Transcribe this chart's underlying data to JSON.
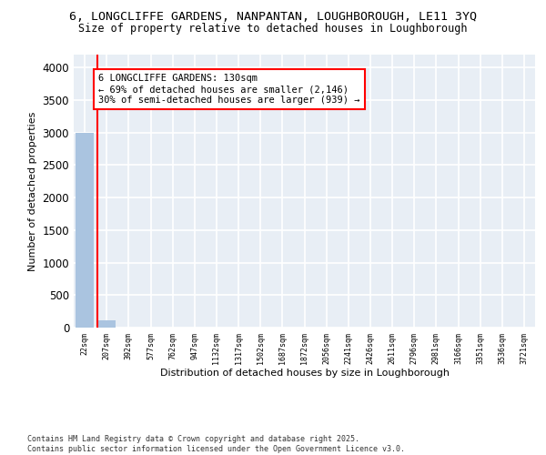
{
  "title_line1": "6, LONGCLIFFE GARDENS, NANPANTAN, LOUGHBOROUGH, LE11 3YQ",
  "title_line2": "Size of property relative to detached houses in Loughborough",
  "xlabel": "Distribution of detached houses by size in Loughborough",
  "ylabel": "Number of detached properties",
  "categories": [
    "22sqm",
    "207sqm",
    "392sqm",
    "577sqm",
    "762sqm",
    "947sqm",
    "1132sqm",
    "1317sqm",
    "1502sqm",
    "1687sqm",
    "1872sqm",
    "2056sqm",
    "2241sqm",
    "2426sqm",
    "2611sqm",
    "2796sqm",
    "2981sqm",
    "3166sqm",
    "3351sqm",
    "3536sqm",
    "3721sqm"
  ],
  "values": [
    3000,
    110,
    0,
    0,
    0,
    0,
    0,
    0,
    0,
    0,
    0,
    0,
    0,
    0,
    0,
    0,
    0,
    0,
    0,
    0,
    0
  ],
  "bar_color": "#aac4e0",
  "annotation_text": "6 LONGCLIFFE GARDENS: 130sqm\n← 69% of detached houses are smaller (2,146)\n30% of semi-detached houses are larger (939) →",
  "ylim": [
    0,
    4200
  ],
  "yticks": [
    0,
    500,
    1000,
    1500,
    2000,
    2500,
    3000,
    3500,
    4000
  ],
  "bg_color": "#e8eef5",
  "grid_color": "#ffffff",
  "footer_line1": "Contains HM Land Registry data © Crown copyright and database right 2025.",
  "footer_line2": "Contains public sector information licensed under the Open Government Licence v3.0."
}
